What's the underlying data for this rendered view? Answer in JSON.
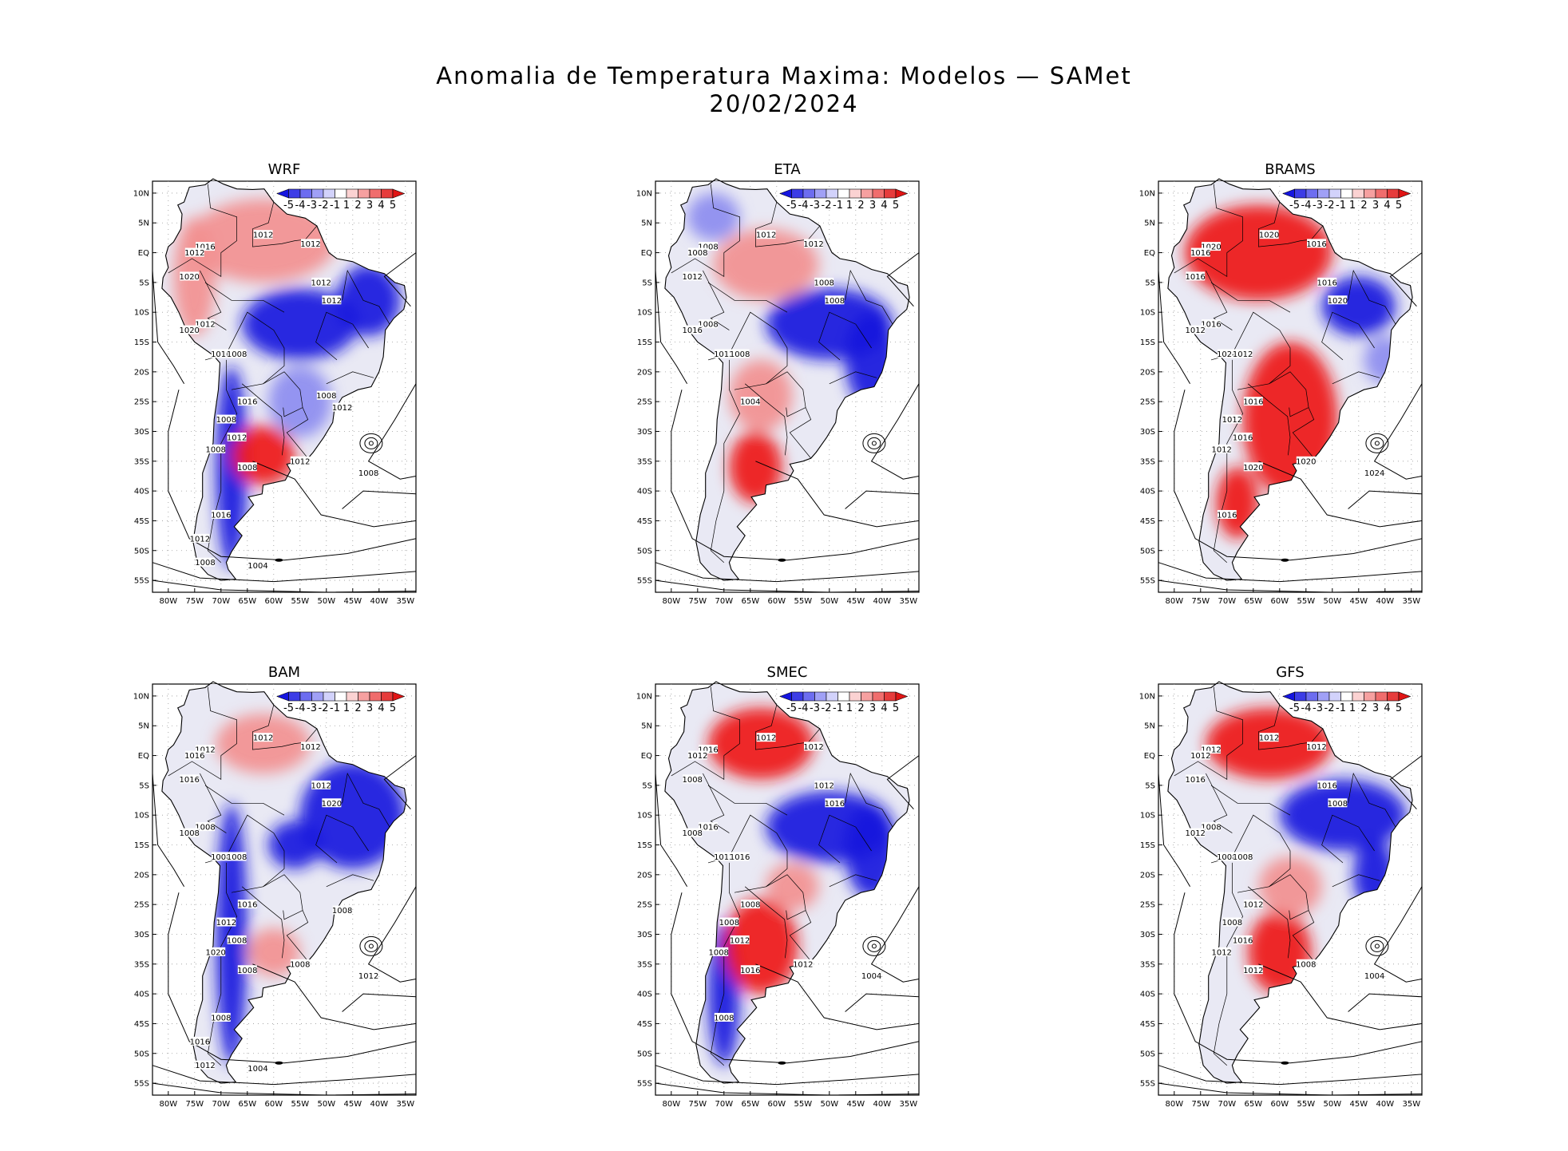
{
  "title": {
    "line1": "Anomalia de Temperatura Maxima: Modelos — SAMet",
    "line2": "20/02/2024"
  },
  "axes": {
    "lat_labels": [
      "10N",
      "5N",
      "EQ",
      "5S",
      "10S",
      "15S",
      "20S",
      "25S",
      "30S",
      "35S",
      "40S",
      "45S",
      "50S",
      "55S"
    ],
    "lon_labels": [
      "80W",
      "75W",
      "70W",
      "65W",
      "60W",
      "55W",
      "50W",
      "45W",
      "40W",
      "35W"
    ]
  },
  "colorbar": {
    "labels": [
      "-5",
      "-4",
      "-3",
      "-2",
      "-1",
      "1",
      "2",
      "3",
      "4",
      "5"
    ],
    "colors": [
      "#1515e0",
      "#3c3ce6",
      "#6d6df0",
      "#a0a0f6",
      "#d2d2fb",
      "#ffffff",
      "#fbd2d2",
      "#f6a0a0",
      "#f06d6d",
      "#e63c3c",
      "#e01515"
    ]
  },
  "colors": {
    "land_base": "#e9e9f4",
    "cold": "#1a1add",
    "cool": "#8c8cf0",
    "warm": "#f29090",
    "hot": "#ee1a1a"
  },
  "panels": [
    {
      "name": "WRF",
      "isobar_labels": [
        "1012",
        "1012",
        "1016",
        "1012",
        "1012",
        "1012",
        "1020",
        "1012",
        "1020",
        "1016",
        "1008",
        "1016",
        "1008",
        "1012",
        "1008",
        "1008",
        "1012",
        "1008",
        "1016",
        "1012",
        "1008",
        "1004",
        "1012",
        "1008"
      ],
      "anomaly_regions": [
        {
          "kind": "cold",
          "lon": -55,
          "lat": -12,
          "rx": 11,
          "ry": 6
        },
        {
          "kind": "cold",
          "lon": -42,
          "lat": -8,
          "rx": 6,
          "ry": 6
        },
        {
          "kind": "cold",
          "lon": -68,
          "lat": -36,
          "rx": 3,
          "ry": 17
        },
        {
          "kind": "warm",
          "lon": -62,
          "lat": 2,
          "rx": 14,
          "ry": 7
        },
        {
          "kind": "warm",
          "lon": -75,
          "lat": -4,
          "rx": 4,
          "ry": 10
        },
        {
          "kind": "hot",
          "lon": -62,
          "lat": -34,
          "rx": 6,
          "ry": 5
        },
        {
          "kind": "cool",
          "lon": -55,
          "lat": -25,
          "rx": 6,
          "ry": 6
        }
      ]
    },
    {
      "name": "ETA",
      "isobar_labels": [
        "1012",
        "1012",
        "1008",
        "1008",
        "1008",
        "1008",
        "1012",
        "1008",
        "1016",
        "1012",
        "1008",
        "1004"
      ],
      "anomaly_regions": [
        {
          "kind": "cold",
          "lon": -50,
          "lat": -12,
          "rx": 12,
          "ry": 6
        },
        {
          "kind": "cold",
          "lon": -42,
          "lat": -18,
          "rx": 5,
          "ry": 8
        },
        {
          "kind": "warm",
          "lon": -62,
          "lat": -2,
          "rx": 10,
          "ry": 6
        },
        {
          "kind": "warm",
          "lon": -63,
          "lat": -24,
          "rx": 6,
          "ry": 6
        },
        {
          "kind": "hot",
          "lon": -64,
          "lat": -36,
          "rx": 5,
          "ry": 6
        },
        {
          "kind": "cool",
          "lon": -72,
          "lat": 6,
          "rx": 5,
          "ry": 4
        }
      ]
    },
    {
      "name": "BRAMS",
      "isobar_labels": [
        "1020",
        "1016",
        "1020",
        "1016",
        "1016",
        "1020",
        "1016",
        "1016",
        "1012",
        "1024",
        "1012",
        "1016",
        "1012",
        "1016",
        "1012",
        "1020",
        "1020",
        "1024",
        "1016"
      ],
      "anomaly_regions": [
        {
          "kind": "hot",
          "lon": -64,
          "lat": 0,
          "rx": 14,
          "ry": 8
        },
        {
          "kind": "hot",
          "lon": -58,
          "lat": -28,
          "rx": 9,
          "ry": 13
        },
        {
          "kind": "hot",
          "lon": -68,
          "lat": -42,
          "rx": 4,
          "ry": 6
        },
        {
          "kind": "cold",
          "lon": -45,
          "lat": -9,
          "rx": 7,
          "ry": 5
        },
        {
          "kind": "cool",
          "lon": -40,
          "lat": -18,
          "rx": 4,
          "ry": 4
        }
      ]
    },
    {
      "name": "BAM",
      "isobar_labels": [
        "1012",
        "1012",
        "1012",
        "1016",
        "1012",
        "1020",
        "1016",
        "1008",
        "1008",
        "1008",
        "1008",
        "1016",
        "1012",
        "1008",
        "1020",
        "1008",
        "1008",
        "1012",
        "1008",
        "1016",
        "1012",
        "1004",
        "1008"
      ],
      "anomaly_regions": [
        {
          "kind": "cold",
          "lon": -45,
          "lat": -10,
          "rx": 10,
          "ry": 9
        },
        {
          "kind": "cold",
          "lon": -68,
          "lat": -30,
          "rx": 3,
          "ry": 22
        },
        {
          "kind": "cold",
          "lon": -56,
          "lat": -15,
          "rx": 5,
          "ry": 4
        },
        {
          "kind": "warm",
          "lon": -62,
          "lat": 2,
          "rx": 9,
          "ry": 5
        },
        {
          "kind": "warm",
          "lon": -60,
          "lat": -33,
          "rx": 5,
          "ry": 4
        }
      ]
    },
    {
      "name": "SMEC",
      "isobar_labels": [
        "1012",
        "1012",
        "1016",
        "1012",
        "1012",
        "1016",
        "1008",
        "1016",
        "1008",
        "1012",
        "1016",
        "1008",
        "1008",
        "1012",
        "1008",
        "1016",
        "1012",
        "1004",
        "1008"
      ],
      "anomaly_regions": [
        {
          "kind": "cold",
          "lon": -50,
          "lat": -12,
          "rx": 12,
          "ry": 6
        },
        {
          "kind": "cold",
          "lon": -42,
          "lat": -16,
          "rx": 5,
          "ry": 8
        },
        {
          "kind": "cold",
          "lon": -70,
          "lat": -40,
          "rx": 3,
          "ry": 12
        },
        {
          "kind": "hot",
          "lon": -63,
          "lat": 2,
          "rx": 10,
          "ry": 6
        },
        {
          "kind": "hot",
          "lon": -63,
          "lat": -32,
          "rx": 7,
          "ry": 8
        },
        {
          "kind": "warm",
          "lon": -57,
          "lat": -22,
          "rx": 5,
          "ry": 4
        }
      ]
    },
    {
      "name": "GFS",
      "isobar_labels": [
        "1012",
        "1012",
        "1012",
        "1012",
        "1016",
        "1008",
        "1016",
        "1008",
        "1012",
        "1008",
        "1008",
        "1012",
        "1008",
        "1016",
        "1012",
        "1012",
        "1008",
        "1004"
      ],
      "anomaly_regions": [
        {
          "kind": "cold",
          "lon": -48,
          "lat": -10,
          "rx": 12,
          "ry": 6
        },
        {
          "kind": "cold",
          "lon": -42,
          "lat": -20,
          "rx": 4,
          "ry": 6
        },
        {
          "kind": "hot",
          "lon": -62,
          "lat": 2,
          "rx": 12,
          "ry": 6
        },
        {
          "kind": "hot",
          "lon": -60,
          "lat": -33,
          "rx": 6,
          "ry": 7
        },
        {
          "kind": "warm",
          "lon": -58,
          "lat": -22,
          "rx": 6,
          "ry": 5
        }
      ]
    }
  ]
}
